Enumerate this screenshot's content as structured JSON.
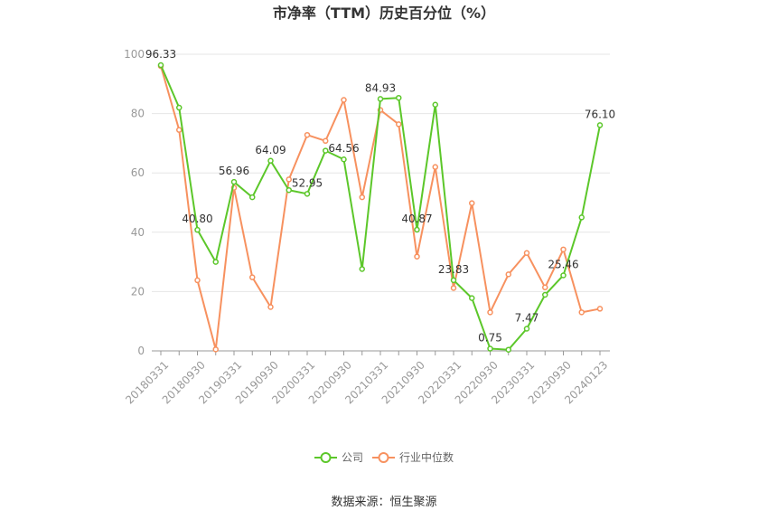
{
  "chart_data": {
    "type": "line",
    "title": "市净率（TTM）历史百分位（%）",
    "source": "数据来源：恒生聚源",
    "ylim": [
      0,
      100
    ],
    "yticks": [
      0,
      20,
      40,
      60,
      80,
      100
    ],
    "grid": true,
    "legend_position": "bottom",
    "x": [
      "20180331",
      "20180630",
      "20180930",
      "20181231",
      "20190331",
      "20190630",
      "20190930",
      "20191231",
      "20200331",
      "20200630",
      "20200930",
      "20201231",
      "20210331",
      "20210630",
      "20210930",
      "20211231",
      "20220331",
      "20220630",
      "20220930",
      "20221231",
      "20230331",
      "20230630",
      "20230930",
      "20231231",
      "20240123"
    ],
    "xtick_labels": [
      "20180331",
      "20180930",
      "20190331",
      "20190930",
      "20200331",
      "20200930",
      "20210331",
      "20210930",
      "20220331",
      "20220930",
      "20230331",
      "20230930",
      "20240123"
    ],
    "series": [
      {
        "name": "公司",
        "color": "#5cc72a",
        "values": [
          96.33,
          82,
          40.8,
          30,
          56.96,
          51.8,
          64.09,
          54.2,
          52.95,
          67.5,
          64.56,
          27.6,
          84.93,
          85.3,
          40.87,
          83,
          23.83,
          17.8,
          0.75,
          0.4,
          7.47,
          18.9,
          25.46,
          45,
          76.1
        ],
        "labels": {
          "0": "96.33",
          "2": "40.80",
          "4": "56.96",
          "6": "64.09",
          "8": "52.95",
          "10": "64.56",
          "12": "84.93",
          "14": "40.87",
          "16": "23.83",
          "18": "0.75",
          "20": "7.47",
          "22": "25.46",
          "24": "76.10"
        }
      },
      {
        "name": "行业中位数",
        "color": "#f7915f",
        "values": [
          96,
          74.5,
          23.8,
          0.5,
          55,
          24.8,
          14.8,
          57.8,
          72.8,
          70.8,
          84.6,
          51.8,
          81.2,
          76.4,
          31.8,
          62,
          21.2,
          49.8,
          13,
          25.8,
          33,
          21.4,
          34.2,
          13,
          14.2
        ]
      }
    ]
  }
}
